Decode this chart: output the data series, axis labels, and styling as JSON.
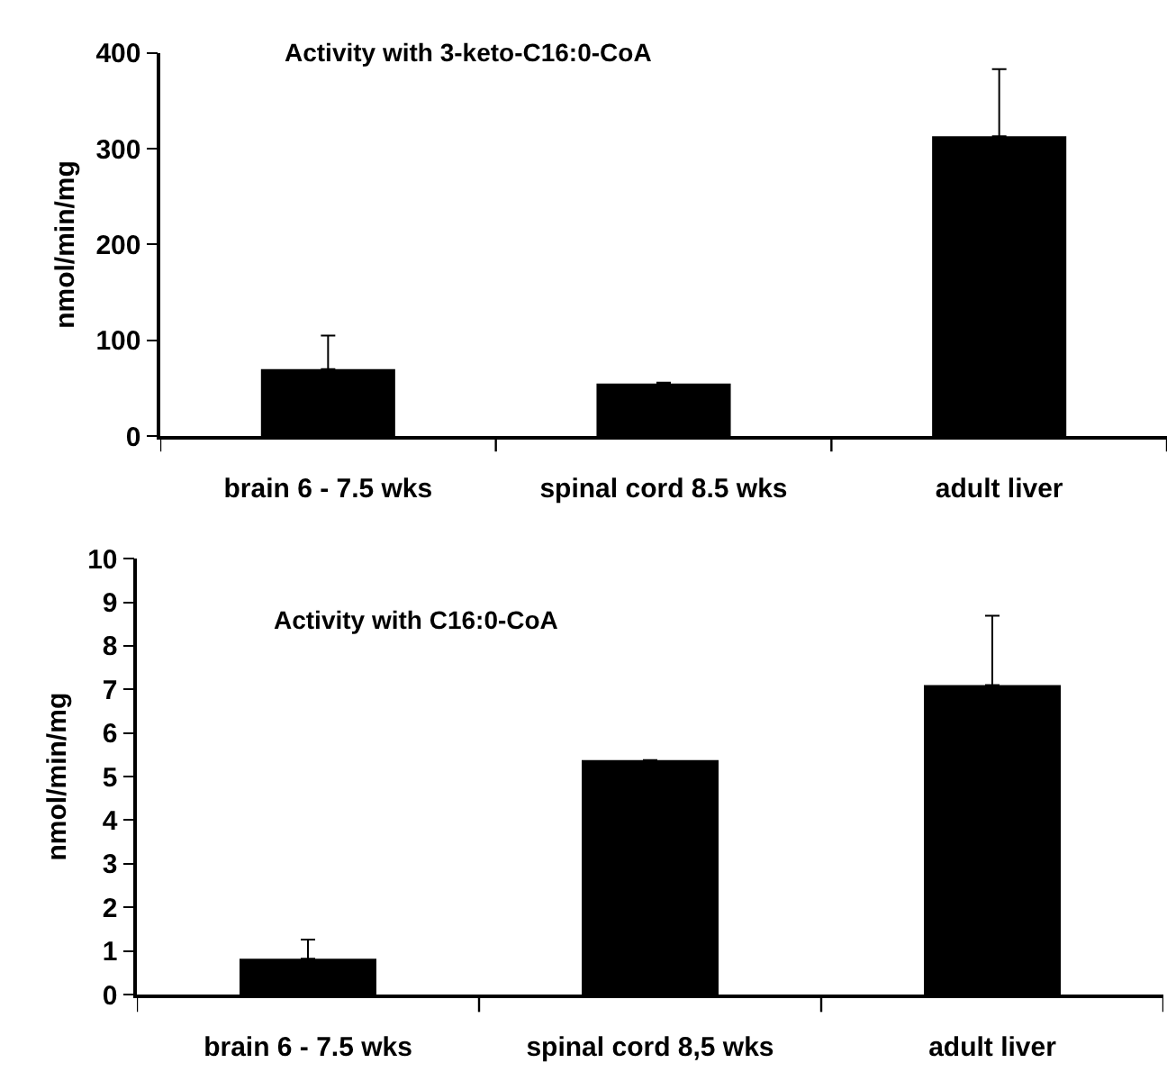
{
  "chart_data": [
    {
      "type": "bar",
      "title": "Activity with 3-keto-C16:0-CoA",
      "ylabel": "nmol/min/mg",
      "categories": [
        "brain 6 - 7.5 wks",
        "spinal cord 8.5 wks",
        "adult liver"
      ],
      "values": [
        70,
        55,
        313
      ],
      "errors": [
        35,
        1,
        70
      ],
      "color": "#000000",
      "ylim": [
        0,
        400
      ],
      "yticks": [
        0,
        100,
        200,
        300,
        400
      ]
    },
    {
      "type": "bar",
      "title": "Activity with C16:0-CoA",
      "ylabel": "nmol/min/mg",
      "categories": [
        "brain 6 - 7.5 wks",
        "spinal cord 8,5 wks",
        "adult liver"
      ],
      "values": [
        0.82,
        5.38,
        7.1
      ],
      "errors": [
        0.44,
        null,
        1.59
      ],
      "color": "#000000",
      "ylim": [
        0,
        10
      ],
      "yticks": [
        0,
        1,
        2,
        3,
        4,
        5,
        6,
        7,
        8,
        9,
        10
      ]
    }
  ]
}
